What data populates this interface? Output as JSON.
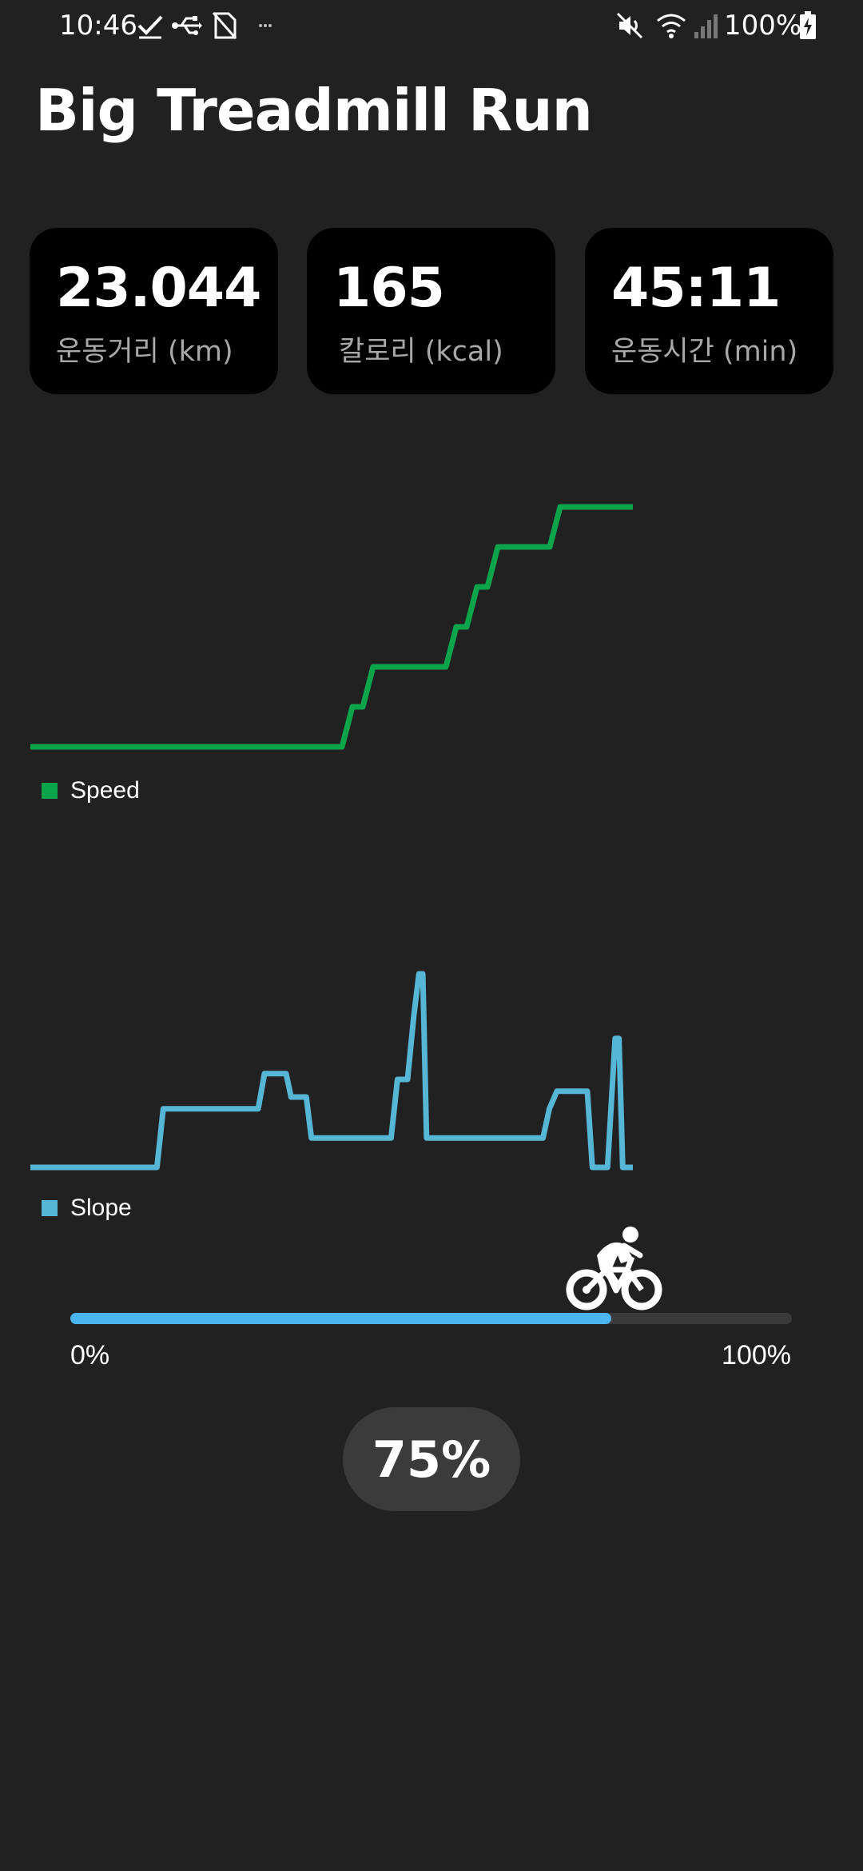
{
  "status_bar": {
    "time": "10:46",
    "battery": "100%",
    "left_icons": [
      "check-icon",
      "usb-icon",
      "no-sim-icon",
      "more-dots-icon"
    ],
    "right_icons": [
      "mute-icon",
      "wifi-icon",
      "signal-icon",
      "battery-charging-icon"
    ]
  },
  "app": {
    "title": "Big Treadmill Run"
  },
  "stats": [
    {
      "value": "23.044",
      "label": "운동거리 (km)"
    },
    {
      "value": "165",
      "label": "칼로리 (kcal)"
    },
    {
      "value": "45:11",
      "label": "운동시간 (min)"
    }
  ],
  "chart_data": [
    {
      "type": "line",
      "title": "",
      "xlabel": "",
      "ylabel": "",
      "series": [
        {
          "name": "Speed",
          "color": "#0aa54a",
          "x": [
            0,
            30,
            31,
            32,
            33,
            34,
            40,
            41,
            42,
            43,
            44,
            45,
            50,
            51,
            52,
            53,
            54,
            55,
            56,
            57,
            58
          ],
          "values": [
            0,
            0,
            1,
            1,
            2,
            2,
            2,
            3,
            3,
            4,
            4,
            5,
            5,
            6,
            6,
            6,
            6,
            6,
            6,
            6,
            6
          ]
        }
      ],
      "legend": "bottom-left",
      "grid": false
    },
    {
      "type": "line",
      "title": "",
      "xlabel": "",
      "ylabel": "",
      "series": [
        {
          "name": "Slope",
          "color": "#56b6d6",
          "x": [
            0,
            10,
            10.5,
            18,
            18.5,
            20.2,
            20.6,
            21.8,
            22.2,
            28.5,
            29,
            29.8,
            30.3,
            30.7,
            31,
            31.3,
            31.8,
            40.5,
            41,
            41.6,
            44,
            44.4,
            45.6,
            46.2,
            46.5,
            46.8,
            47.2,
            47.6
          ],
          "values": [
            0,
            0,
            5,
            5,
            8,
            8,
            6,
            6,
            2.5,
            2.5,
            7.5,
            7.5,
            13,
            16.5,
            16.5,
            2.5,
            2.5,
            2.5,
            5,
            6.5,
            6.5,
            0,
            0,
            11,
            11,
            0,
            0,
            0
          ]
        }
      ],
      "legend": "bottom-left",
      "grid": false
    }
  ],
  "progress": {
    "value_fraction": 0.75,
    "min_label": "0%",
    "max_label": "100%",
    "current_label": "75%",
    "color": "#4ab5f0",
    "icon": "bicycle-rider-icon"
  }
}
